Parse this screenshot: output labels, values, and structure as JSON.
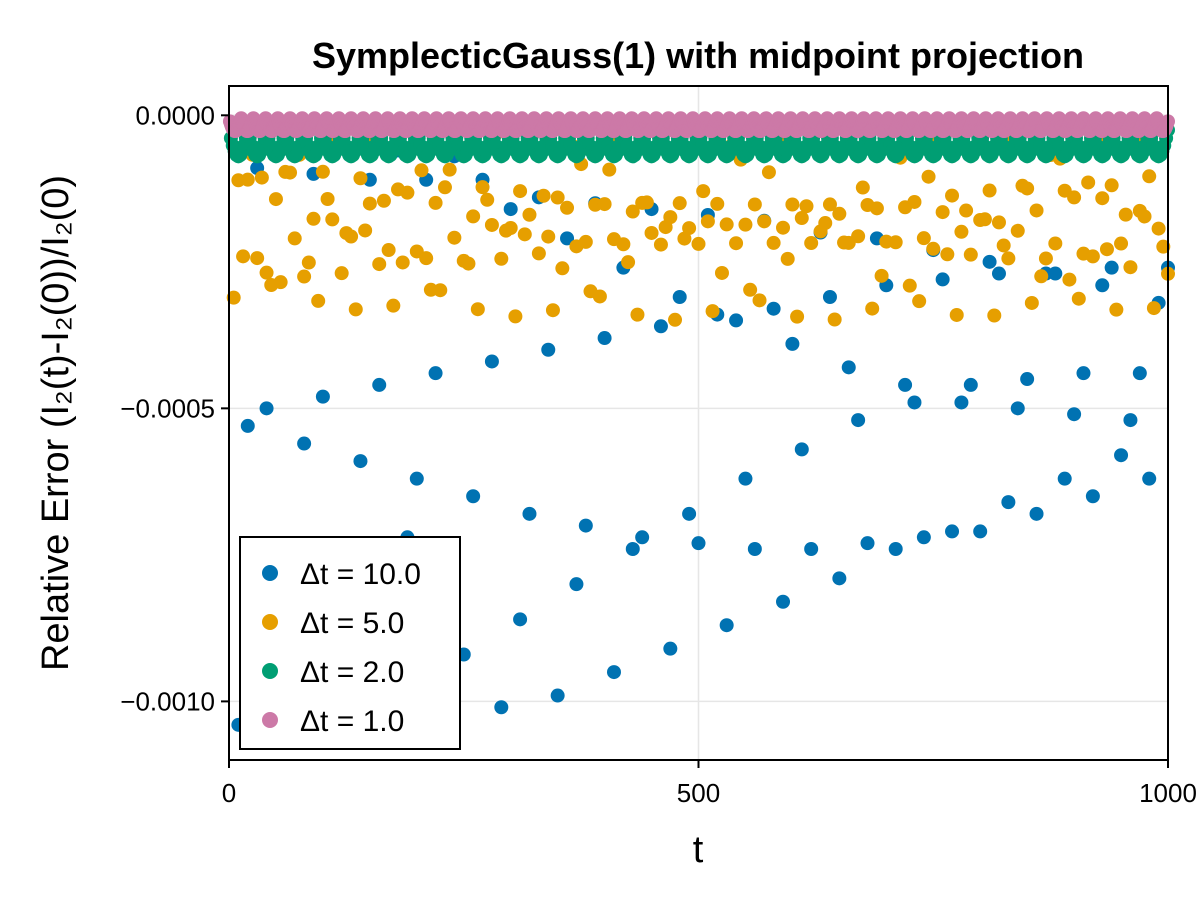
{
  "chart_data": {
    "type": "scatter",
    "title": "SymplecticGauss(1) with midpoint projection",
    "xlabel": "t",
    "ylabel": "Relative Error (I₂(t)-I₂(0))/I₂(0)",
    "xlim": [
      0,
      1000
    ],
    "ylim": [
      -0.0011,
      5e-05
    ],
    "x_ticks": [
      0,
      500,
      1000
    ],
    "x_tick_labels": [
      "0",
      "500",
      "1000"
    ],
    "y_ticks": [
      0.0,
      -0.0005,
      -0.001
    ],
    "y_tick_labels": [
      "0.0000",
      "−0.0005",
      "−0.0010"
    ],
    "grid": true,
    "legend_position": "bottom-left",
    "series": [
      {
        "name": "Δt = 10.0",
        "color": "#0072b2",
        "dt": 10,
        "x": [
          10,
          20,
          30,
          40,
          50,
          60,
          70,
          80,
          90,
          100,
          110,
          120,
          130,
          140,
          150,
          160,
          170,
          180,
          190,
          200,
          210,
          220,
          230,
          240,
          250,
          260,
          270,
          280,
          290,
          300,
          310,
          320,
          330,
          340,
          350,
          360,
          370,
          380,
          390,
          400,
          410,
          420,
          430,
          440,
          450,
          460,
          470,
          480,
          490,
          500,
          510,
          520,
          530,
          540,
          550,
          560,
          570,
          580,
          590,
          600,
          610,
          620,
          630,
          640,
          650,
          660,
          670,
          680,
          690,
          700,
          710,
          720,
          730,
          740,
          750,
          760,
          770,
          780,
          790,
          800,
          810,
          820,
          830,
          840,
          850,
          860,
          870,
          880,
          890,
          900,
          910,
          920,
          930,
          940,
          950,
          960,
          970,
          980,
          990,
          1000
        ],
        "y": [
          -0.00104,
          -0.00053,
          -9e-05,
          -0.0005,
          -0.00097,
          -3e-05,
          -0.00078,
          -0.00056,
          -0.0001,
          -0.00048,
          -0.00095,
          -3e-05,
          -0.00082,
          -0.00059,
          -0.00011,
          -0.00046,
          -0.00091,
          -6e-05,
          -0.00072,
          -0.00062,
          -0.00011,
          -0.00044,
          -0.00099,
          -7e-05,
          -0.00092,
          -0.00065,
          -0.00011,
          -0.00042,
          -0.00101,
          -0.00016,
          -0.00086,
          -0.00068,
          -0.00014,
          -0.0004,
          -0.00099,
          -0.00021,
          -0.0008,
          -0.0007,
          -0.00015,
          -0.00038,
          -0.00095,
          -0.00026,
          -0.00074,
          -0.00072,
          -0.00016,
          -0.00036,
          -0.00091,
          -0.00031,
          -0.00068,
          -0.00073,
          -0.00017,
          -0.00034,
          -0.00087,
          -0.00035,
          -0.00062,
          -0.00074,
          -0.00018,
          -0.00033,
          -0.00083,
          -0.00039,
          -0.00057,
          -0.00074,
          -0.0002,
          -0.00031,
          -0.00079,
          -0.00043,
          -0.00052,
          -0.00073,
          -0.00021,
          -0.00029,
          -0.00074,
          -0.00046,
          -0.00049,
          -0.00072,
          -0.00023,
          -0.00028,
          -0.00071,
          -0.00049,
          -0.00046,
          -0.00071,
          -0.00025,
          -0.00027,
          -0.00066,
          -0.0005,
          -0.00045,
          -0.00068,
          -0.00027,
          -0.00027,
          -0.00062,
          -0.00051,
          -0.00044,
          -0.00065,
          -0.00029,
          -0.00026,
          -0.00058,
          -0.00052,
          -0.00044,
          -0.00062,
          -0.00032,
          -0.00026
        ]
      },
      {
        "name": "Δt = 5.0",
        "color": "#e69f00",
        "dt": 5
      },
      {
        "name": "Δt = 2.0",
        "color": "#009e73",
        "dt": 2
      },
      {
        "name": "Δt = 1.0",
        "color": "#cc79a7",
        "dt": 1
      }
    ]
  }
}
